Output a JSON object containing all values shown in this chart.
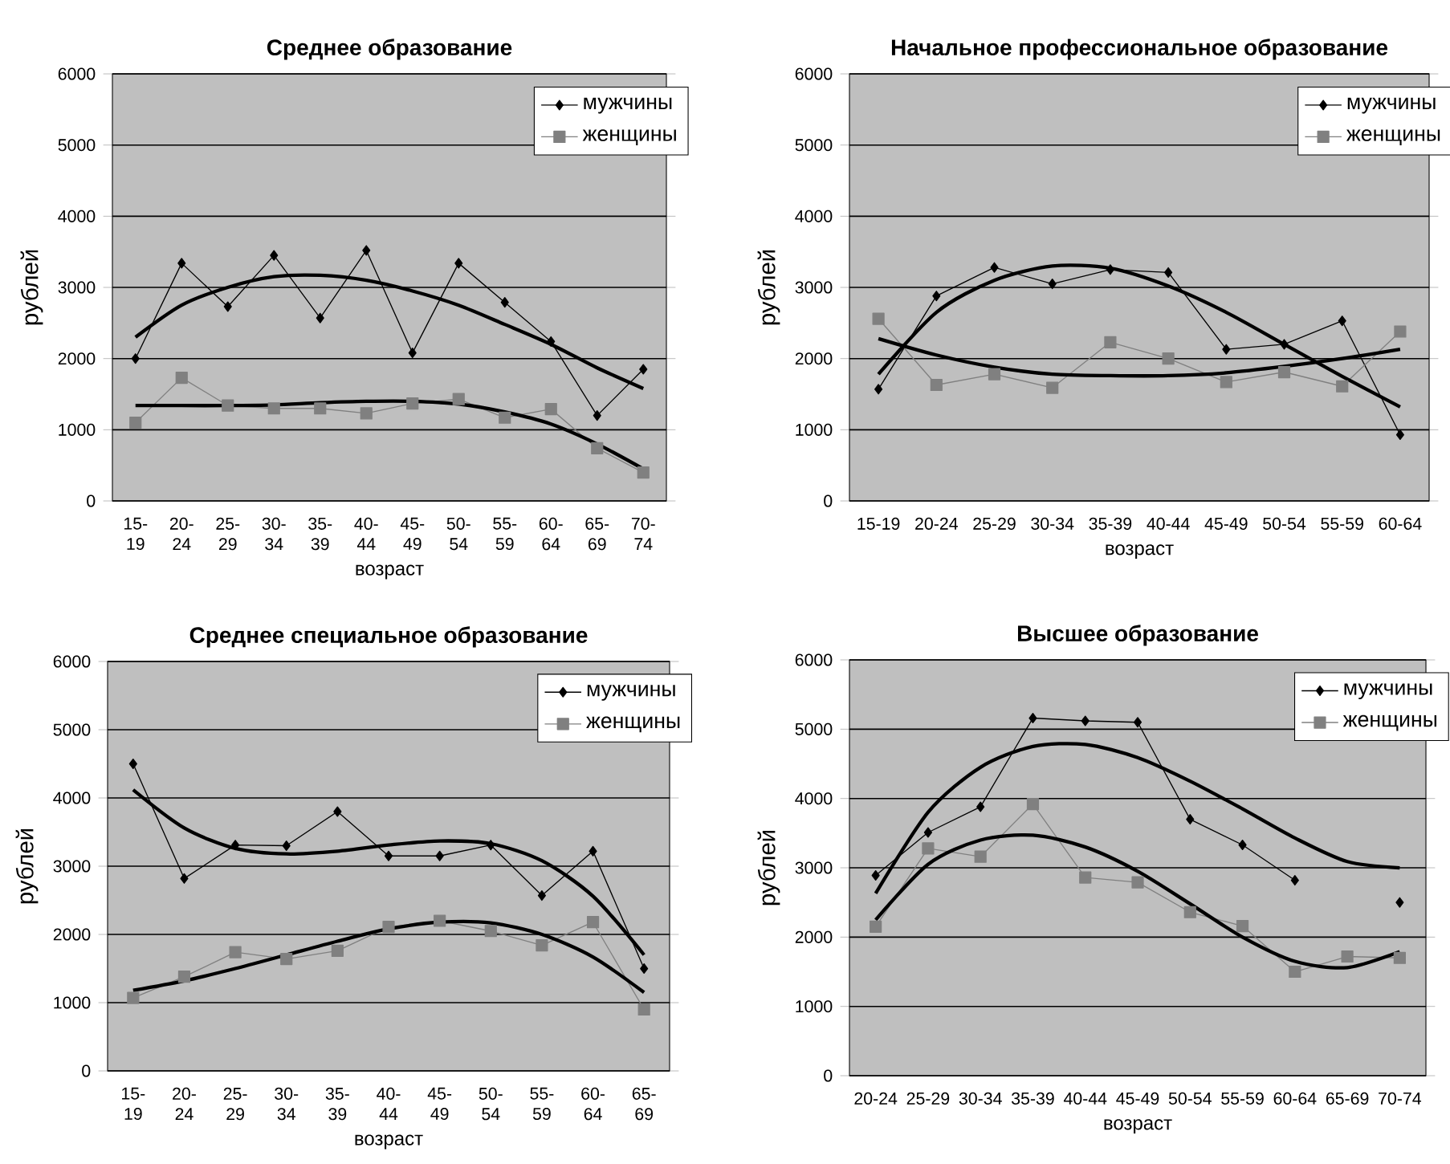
{
  "chart_data": [
    {
      "type": "line",
      "title": "Среднее образование",
      "xlabel": "возраст",
      "ylabel": "рублей",
      "categories": [
        "15-19",
        "20-24",
        "25-29",
        "30-34",
        "35-39",
        "40-44",
        "45-49",
        "50-54",
        "55-59",
        "60-64",
        "65-69",
        "70-74"
      ],
      "ylim": [
        0,
        6000
      ],
      "yticks": [
        0,
        1000,
        2000,
        3000,
        4000,
        5000,
        6000
      ],
      "grid": "y",
      "legend": "top right",
      "series": [
        {
          "name": "мужчины",
          "color": "#000000",
          "marker": "diamond",
          "values": [
            2000,
            3340,
            2730,
            3450,
            2570,
            3520,
            2080,
            3340,
            2790,
            2240,
            1200,
            1850
          ]
        },
        {
          "name": "женщины",
          "color": "#808080",
          "marker": "square",
          "values": [
            1100,
            1730,
            1340,
            1300,
            1300,
            1230,
            1370,
            1430,
            1170,
            1290,
            740,
            400
          ]
        },
        {
          "color": "#000000",
          "marker": "none",
          "values": [
            2300,
            2750,
            3000,
            3150,
            3170,
            3100,
            2950,
            2750,
            2480,
            2200,
            1870,
            1580
          ]
        },
        {
          "color": "#000000",
          "marker": "none",
          "values": [
            1340,
            1340,
            1340,
            1350,
            1380,
            1400,
            1400,
            1360,
            1250,
            1080,
            800,
            450
          ]
        }
      ]
    },
    {
      "type": "line",
      "title": "Начальное профессиональное образование",
      "xlabel": "возраст",
      "ylabel": "рублей",
      "categories": [
        "15-19",
        "20-24",
        "25-29",
        "30-34",
        "35-39",
        "40-44",
        "45-49",
        "50-54",
        "55-59",
        "60-64"
      ],
      "ylim": [
        0,
        6000
      ],
      "yticks": [
        0,
        1000,
        2000,
        3000,
        4000,
        5000,
        6000
      ],
      "grid": "y",
      "legend": "top right",
      "series": [
        {
          "name": "мужчины",
          "color": "#000000",
          "marker": "diamond",
          "values": [
            1570,
            2880,
            3280,
            3050,
            3250,
            3210,
            2130,
            2200,
            2530,
            930
          ]
        },
        {
          "name": "женщины",
          "color": "#808080",
          "marker": "square",
          "values": [
            2560,
            1630,
            1780,
            1590,
            2230,
            2000,
            1670,
            1810,
            1610,
            2380
          ]
        },
        {
          "color": "#000000",
          "marker": "none",
          "values": [
            1780,
            2650,
            3100,
            3300,
            3270,
            3020,
            2650,
            2200,
            1750,
            1320
          ]
        },
        {
          "color": "#000000",
          "marker": "none",
          "values": [
            2280,
            2050,
            1880,
            1780,
            1760,
            1760,
            1800,
            1890,
            2000,
            2130
          ]
        }
      ]
    },
    {
      "type": "line",
      "title": "Среднее специальное образование",
      "xlabel": "возраст",
      "ylabel": "рублей",
      "categories": [
        "15-19",
        "20-24",
        "25-29",
        "30-34",
        "35-39",
        "40-44",
        "45-49",
        "50-54",
        "55-59",
        "60-64",
        "65-69"
      ],
      "ylim": [
        0,
        6000
      ],
      "yticks": [
        0,
        1000,
        2000,
        3000,
        4000,
        5000,
        6000
      ],
      "grid": "y",
      "legend": "top right",
      "series": [
        {
          "name": "мужчины",
          "color": "#000000",
          "marker": "diamond",
          "values": [
            4500,
            2820,
            3310,
            3300,
            3800,
            3150,
            3150,
            3310,
            2570,
            3220,
            1500
          ]
        },
        {
          "name": "женщины",
          "color": "#808080",
          "marker": "square",
          "values": [
            1070,
            1380,
            1740,
            1640,
            1760,
            2110,
            2200,
            2050,
            1840,
            2180,
            900
          ]
        },
        {
          "color": "#000000",
          "marker": "none",
          "values": [
            4120,
            3560,
            3260,
            3180,
            3220,
            3310,
            3370,
            3330,
            3080,
            2560,
            1700
          ]
        },
        {
          "color": "#000000",
          "marker": "none",
          "values": [
            1180,
            1320,
            1500,
            1700,
            1900,
            2080,
            2180,
            2170,
            2000,
            1670,
            1150
          ]
        }
      ]
    },
    {
      "type": "line",
      "title": "Высшее образование",
      "xlabel": "возраст",
      "ylabel": "рублей",
      "categories": [
        "20-24",
        "25-29",
        "30-34",
        "35-39",
        "40-44",
        "45-49",
        "50-54",
        "55-59",
        "60-64",
        "65-69",
        "70-74"
      ],
      "ylim": [
        0,
        6000
      ],
      "yticks": [
        0,
        1000,
        2000,
        3000,
        4000,
        5000,
        6000
      ],
      "grid": "y",
      "legend": "top right",
      "series": [
        {
          "name": "мужчины",
          "color": "#000000",
          "marker": "diamond",
          "values": [
            2890,
            3510,
            3880,
            5160,
            5120,
            5100,
            3700,
            3330,
            2820,
            null,
            2500
          ]
        },
        {
          "name": "женщины",
          "color": "#808080",
          "marker": "square",
          "values": [
            2150,
            3280,
            3160,
            3920,
            2860,
            2790,
            2360,
            2160,
            1500,
            1720,
            1700
          ]
        },
        {
          "color": "#000000",
          "marker": "none",
          "values": [
            2630,
            3800,
            4450,
            4750,
            4780,
            4590,
            4250,
            3850,
            3430,
            3090,
            3000
          ]
        },
        {
          "color": "#000000",
          "marker": "none",
          "values": [
            2250,
            3050,
            3400,
            3470,
            3300,
            2950,
            2480,
            2000,
            1650,
            1560,
            1790
          ]
        }
      ]
    }
  ]
}
